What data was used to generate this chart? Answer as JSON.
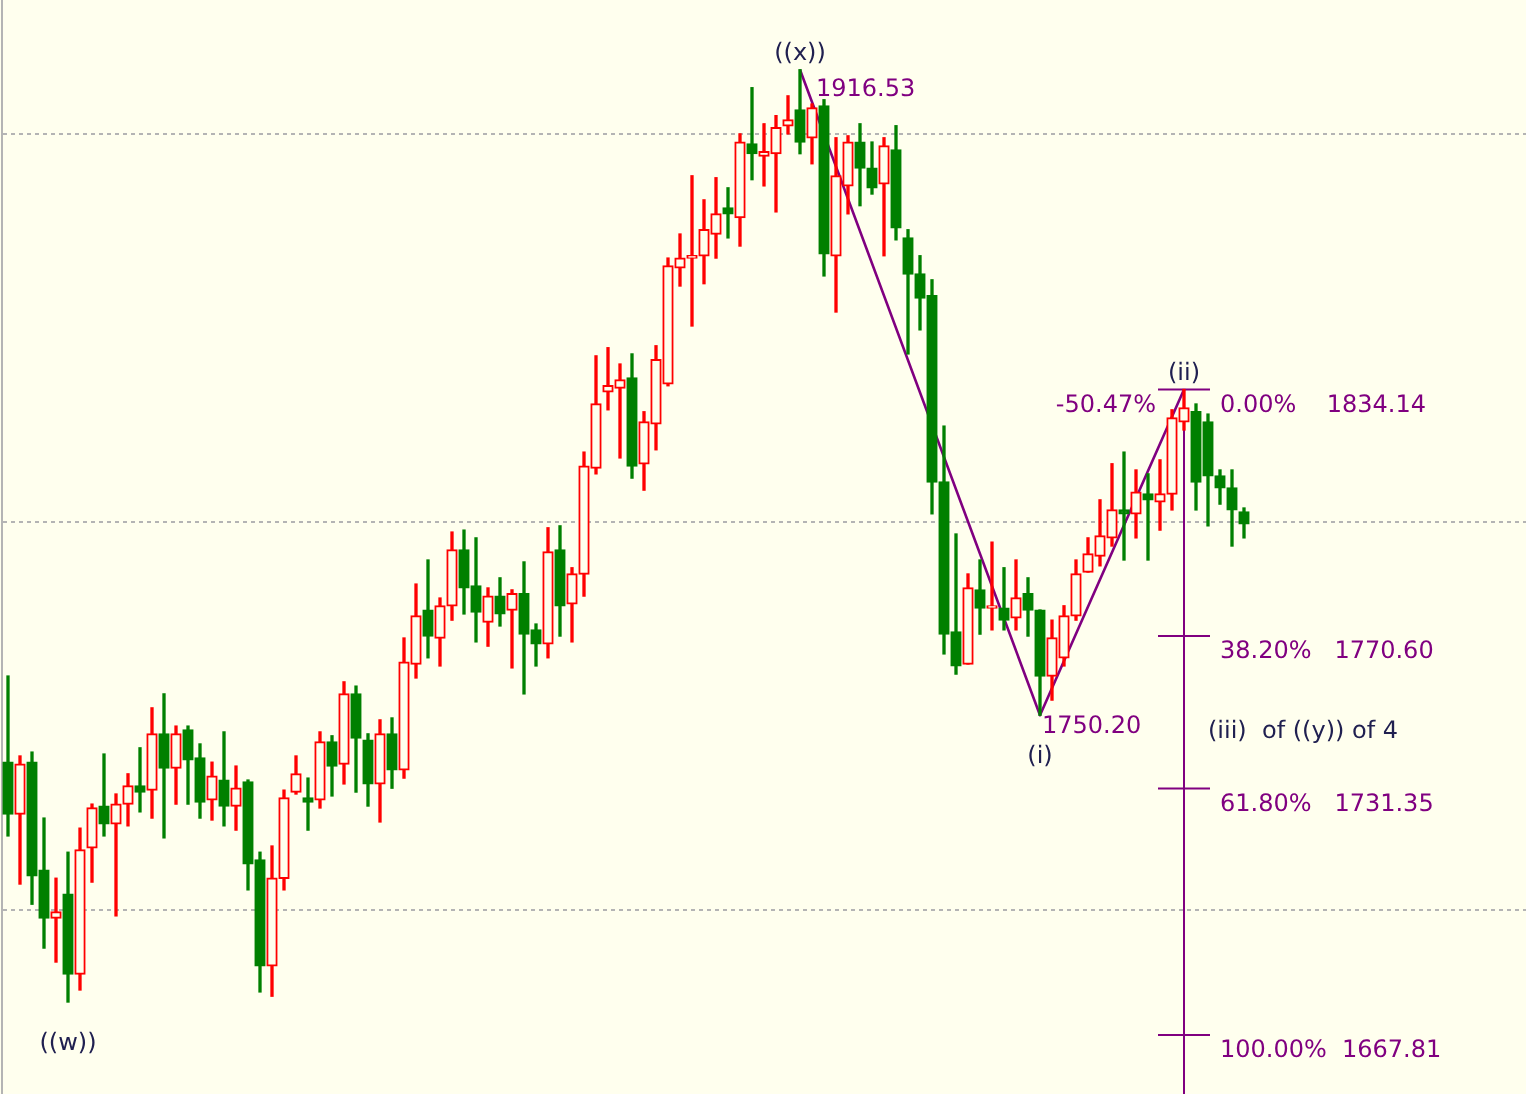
{
  "chart_data": {
    "type": "candlestick",
    "categories": [
      null,
      null,
      null,
      null,
      null,
      null,
      null,
      null,
      null,
      null,
      null,
      null,
      null,
      null,
      null,
      null,
      null,
      null,
      null,
      null,
      null,
      null,
      null,
      null,
      null,
      null,
      null,
      null,
      null,
      null,
      null,
      null,
      null,
      null,
      null,
      null,
      null,
      null,
      null,
      null,
      null,
      null,
      null,
      null,
      null,
      null,
      null,
      null,
      null,
      null,
      null,
      null,
      null,
      null,
      null,
      null,
      null,
      null,
      null,
      null,
      null,
      null,
      null,
      null,
      null,
      null,
      null,
      null,
      null,
      null,
      null,
      null,
      null,
      null,
      null,
      null,
      null,
      null,
      null,
      null,
      null,
      null,
      null,
      null,
      null,
      null,
      null,
      null,
      null,
      null,
      null,
      null,
      null,
      null,
      null,
      null,
      null,
      null,
      null,
      null,
      null,
      null,
      null,
      null,
      null,
      null,
      null,
      null,
      null,
      null,
      null,
      null,
      null,
      null,
      null,
      null,
      null,
      null,
      null,
      null,
      null,
      null,
      null,
      null,
      null,
      null,
      null
    ],
    "ohlc": [
      [
        1738.1,
        1760.3,
        1719.1,
        1724.7
      ],
      [
        1724.7,
        1739.7,
        1706.7,
        1737.6
      ],
      [
        1738.1,
        1740.7,
        1701.5,
        1708.8
      ],
      [
        1710.3,
        1723.7,
        1690.2,
        1697.9
      ],
      [
        1697.9,
        1708.2,
        1686.6,
        1699.5
      ],
      [
        1704.1,
        1714.9,
        1676.3,
        1683.5
      ],
      [
        1683.5,
        1721.1,
        1679.4,
        1715.5
      ],
      [
        1716.0,
        1727.3,
        1707.2,
        1726.3
      ],
      [
        1726.8,
        1740.2,
        1719.1,
        1722.2
      ],
      [
        1722.2,
        1729.9,
        1698.5,
        1727.3
      ],
      [
        1727.3,
        1735.1,
        1721.7,
        1732.0
      ],
      [
        1732.0,
        1741.8,
        1725.3,
        1730.4
      ],
      [
        1730.9,
        1752.1,
        1723.7,
        1745.4
      ],
      [
        1745.4,
        1755.7,
        1718.6,
        1736.6
      ],
      [
        1736.6,
        1747.4,
        1727.3,
        1745.4
      ],
      [
        1746.4,
        1747.4,
        1727.3,
        1738.7
      ],
      [
        1739.2,
        1742.8,
        1723.7,
        1727.8
      ],
      [
        1728.4,
        1738.1,
        1723.2,
        1734.5
      ],
      [
        1733.5,
        1745.9,
        1721.7,
        1726.8
      ],
      [
        1726.8,
        1737.1,
        1720.6,
        1731.4
      ],
      [
        1733.0,
        1733.5,
        1705.2,
        1711.9
      ],
      [
        1712.9,
        1714.9,
        1678.9,
        1685.6
      ],
      [
        1685.6,
        1716.5,
        1677.8,
        1708.2
      ],
      [
        1708.2,
        1730.9,
        1705.2,
        1728.9
      ],
      [
        1730.4,
        1739.7,
        1729.9,
        1735.1
      ],
      [
        1728.9,
        1734.0,
        1720.6,
        1727.8
      ],
      [
        1728.4,
        1745.9,
        1726.3,
        1743.3
      ],
      [
        1743.3,
        1744.9,
        1729.4,
        1737.1
      ],
      [
        1737.6,
        1758.8,
        1732.5,
        1755.7
      ],
      [
        1755.7,
        1757.7,
        1730.4,
        1744.3
      ],
      [
        1743.8,
        1745.4,
        1726.8,
        1732.5
      ],
      [
        1732.5,
        1749.0,
        1722.7,
        1745.4
      ],
      [
        1745.4,
        1749.5,
        1731.4,
        1736.1
      ],
      [
        1736.1,
        1770.1,
        1734.0,
        1763.9
      ],
      [
        1763.4,
        1784.0,
        1759.8,
        1775.8
      ],
      [
        1777.3,
        1790.2,
        1765.0,
        1770.6
      ],
      [
        1770.1,
        1780.4,
        1762.9,
        1778.4
      ],
      [
        1778.4,
        1797.4,
        1774.7,
        1792.8
      ],
      [
        1792.8,
        1797.9,
        1776.3,
        1783.0
      ],
      [
        1783.5,
        1795.9,
        1769.1,
        1776.8
      ],
      [
        1774.2,
        1783.0,
        1768.0,
        1780.9
      ],
      [
        1780.9,
        1785.6,
        1773.2,
        1776.3
      ],
      [
        1777.3,
        1782.5,
        1762.4,
        1781.5
      ],
      [
        1781.5,
        1789.7,
        1755.7,
        1771.1
      ],
      [
        1772.2,
        1773.7,
        1762.9,
        1768.6
      ],
      [
        1768.6,
        1798.5,
        1765.0,
        1792.3
      ],
      [
        1792.8,
        1799.0,
        1770.6,
        1778.4
      ],
      [
        1778.9,
        1788.2,
        1769.1,
        1786.6
      ],
      [
        1786.6,
        1818.0,
        1780.9,
        1814.4
      ],
      [
        1813.9,
        1842.8,
        1812.4,
        1830.4
      ],
      [
        1833.5,
        1844.9,
        1828.9,
        1835.1
      ],
      [
        1834.5,
        1840.7,
        1816.5,
        1836.6
      ],
      [
        1837.1,
        1843.3,
        1811.3,
        1814.4
      ],
      [
        1815.0,
        1828.4,
        1808.2,
        1825.8
      ],
      [
        1825.3,
        1845.4,
        1818.6,
        1841.8
      ],
      [
        1835.6,
        1868.0,
        1835.1,
        1866.0
      ],
      [
        1865.5,
        1874.2,
        1860.8,
        1868.0
      ],
      [
        1868.0,
        1889.2,
        1850.5,
        1868.6
      ],
      [
        1868.6,
        1883.0,
        1861.4,
        1875.3
      ],
      [
        1874.2,
        1888.7,
        1868.0,
        1879.4
      ],
      [
        1880.9,
        1886.1,
        1873.2,
        1879.4
      ],
      [
        1878.4,
        1900.0,
        1871.1,
        1897.9
      ],
      [
        1897.4,
        1911.9,
        1888.2,
        1894.9
      ],
      [
        1894.3,
        1902.6,
        1886.6,
        1895.4
      ],
      [
        1894.9,
        1904.7,
        1879.9,
        1901.6
      ],
      [
        1902.1,
        1909.8,
        1900.0,
        1903.6
      ],
      [
        1906.2,
        1916.53,
        1894.9,
        1897.9
      ],
      [
        1899.0,
        1907.7,
        1892.3,
        1906.7
      ],
      [
        1907.2,
        1908.8,
        1863.4,
        1869.1
      ],
      [
        1868.6,
        1899.0,
        1854.1,
        1889.2
      ],
      [
        1886.6,
        1899.5,
        1879.4,
        1897.9
      ],
      [
        1897.9,
        1902.6,
        1881.5,
        1891.2
      ],
      [
        1891.2,
        1897.9,
        1884.5,
        1886.1
      ],
      [
        1887.1,
        1899.0,
        1868.6,
        1896.9
      ],
      [
        1895.9,
        1902.1,
        1872.7,
        1875.8
      ],
      [
        1873.2,
        1875.3,
        1843.3,
        1863.9
      ],
      [
        1863.9,
        1868.6,
        1849.5,
        1857.7
      ],
      [
        1858.3,
        1862.4,
        1802.1,
        1810.3
      ],
      [
        1810.3,
        1824.7,
        1766.0,
        1771.1
      ],
      [
        1771.7,
        1796.9,
        1760.8,
        1762.9
      ],
      [
        1763.4,
        1786.6,
        1763.4,
        1783.0
      ],
      [
        1782.5,
        1790.2,
        1771.1,
        1777.8
      ],
      [
        1777.8,
        1794.8,
        1772.2,
        1778.4
      ],
      [
        1777.8,
        1788.2,
        1772.2,
        1774.7
      ],
      [
        1775.3,
        1790.2,
        1772.2,
        1780.4
      ],
      [
        1781.5,
        1785.6,
        1770.6,
        1777.3
      ],
      [
        1777.3,
        1777.3,
        1750.2,
        1760.3
      ],
      [
        1760.3,
        1774.7,
        1754.1,
        1770.1
      ],
      [
        1765.0,
        1778.4,
        1762.9,
        1775.8
      ],
      [
        1775.8,
        1790.2,
        1774.7,
        1786.6
      ],
      [
        1787.1,
        1795.9,
        1787.1,
        1791.8
      ],
      [
        1791.2,
        1805.7,
        1788.7,
        1796.4
      ],
      [
        1795.9,
        1815.0,
        1793.8,
        1803.1
      ],
      [
        1803.1,
        1818.0,
        1790.2,
        1802.1
      ],
      [
        1802.1,
        1813.4,
        1795.9,
        1807.7
      ],
      [
        1807.2,
        1812.4,
        1790.2,
        1805.7
      ],
      [
        1805.2,
        1816.0,
        1797.9,
        1807.2
      ],
      [
        1807.2,
        1828.9,
        1803.1,
        1826.8
      ],
      [
        1825.8,
        1834.14,
        1823.7,
        1829.4
      ],
      [
        1828.4,
        1830.4,
        1803.1,
        1810.3
      ],
      [
        1825.8,
        1827.8,
        1799.0,
        1811.9
      ],
      [
        1811.9,
        1813.4,
        1804.6,
        1808.8
      ],
      [
        1808.8,
        1813.4,
        1793.8,
        1803.1
      ],
      [
        1802.6,
        1803.6,
        1795.9,
        1799.5
      ],
      null,
      null,
      null,
      null,
      null,
      null,
      null,
      null,
      null,
      null,
      null,
      null,
      null,
      null,
      null,
      null,
      null,
      null,
      null,
      null,
      null,
      null,
      null
    ],
    "colors": [
      "#008000",
      "#ff0000",
      "#008000",
      "#008000",
      "#ff0000",
      "#008000",
      "#ff0000",
      "#ff0000",
      "#008000",
      "#ff0000",
      "#ff0000",
      "#008000",
      "#ff0000",
      "#008000",
      "#ff0000",
      "#008000",
      "#008000",
      "#ff0000",
      "#008000",
      "#ff0000",
      "#008000",
      "#008000",
      "#ff0000",
      "#ff0000",
      "#ff0000",
      "#008000",
      "#ff0000",
      "#008000",
      "#ff0000",
      "#008000",
      "#008000",
      "#ff0000",
      "#008000",
      "#ff0000",
      "#ff0000",
      "#008000",
      "#ff0000",
      "#ff0000",
      "#008000",
      "#008000",
      "#ff0000",
      "#008000",
      "#ff0000",
      "#008000",
      "#008000",
      "#ff0000",
      "#008000",
      "#ff0000",
      "#ff0000",
      "#ff0000",
      "#ff0000",
      "#ff0000",
      "#008000",
      "#ff0000",
      "#ff0000",
      "#ff0000",
      "#ff0000",
      "#ff0000",
      "#ff0000",
      "#ff0000",
      "#008000",
      "#ff0000",
      "#008000",
      "#ff0000",
      "#ff0000",
      "#ff0000",
      "#008000",
      "#ff0000",
      "#008000",
      "#ff0000",
      "#ff0000",
      "#008000",
      "#008000",
      "#ff0000",
      "#008000",
      "#008000",
      "#008000",
      "#008000",
      "#008000",
      "#008000",
      "#ff0000",
      "#008000",
      "#ff0000",
      "#008000",
      "#ff0000",
      "#008000",
      "#008000",
      "#ff0000",
      "#ff0000",
      "#ff0000",
      "#ff0000",
      "#ff0000",
      "#ff0000",
      "#008000",
      "#ff0000",
      "#008000",
      "#ff0000",
      "#ff0000",
      "#ff0000",
      "#008000",
      "#008000",
      "#008000",
      "#008000",
      "#008000",
      null,
      null,
      null,
      null,
      null,
      null,
      null,
      null,
      null,
      null,
      null,
      null,
      null,
      null,
      null,
      null,
      null,
      null,
      null,
      null,
      null,
      null,
      null
    ],
    "series": [
      {
        "type": "line",
        "color": "#800080",
        "values": [
          null,
          null,
          null,
          null,
          null,
          null,
          null,
          null,
          null,
          null,
          null,
          null,
          null,
          null,
          null,
          null,
          null,
          null,
          null,
          null,
          null,
          null,
          null,
          null,
          null,
          null,
          null,
          null,
          null,
          null,
          null,
          null,
          null,
          null,
          null,
          null,
          null,
          null,
          null,
          null,
          null,
          null,
          null,
          null,
          null,
          null,
          null,
          null,
          null,
          null,
          null,
          null,
          null,
          null,
          null,
          null,
          null,
          null,
          null,
          null,
          null,
          null,
          null,
          null,
          null,
          null,
          1916.53,
          null,
          null,
          null,
          null,
          null,
          null,
          null,
          null,
          null,
          null,
          null,
          null,
          null,
          null,
          null,
          null,
          null,
          null,
          null,
          1750.2,
          null,
          null,
          null,
          null,
          null,
          null,
          null,
          null,
          null,
          null,
          null,
          1834.14,
          null,
          null,
          null,
          null,
          null,
          null,
          null,
          null,
          null,
          null,
          null,
          null,
          null,
          null,
          null,
          null,
          null,
          null,
          null,
          null,
          null,
          null,
          null,
          null,
          null,
          null,
          null,
          null
        ]
      }
    ],
    "ylim": [
      1652.6,
      1934.5
    ],
    "yticks": [
      {
        "value": 1700,
        "label": null
      },
      {
        "value": 1800,
        "label": null
      },
      {
        "value": 1900,
        "label": null
      }
    ],
    "grid": "y",
    "tick_labels": false,
    "ref_lines": [
      {
        "axis": "y",
        "value": 1834.14,
        "label": "0.00%    1834.14",
        "color": "#800080"
      },
      {
        "axis": "y",
        "value": 1770.6,
        "label": "38.20%   1770.60",
        "color": "#800080"
      },
      {
        "axis": "y",
        "value": 1731.35,
        "label": "61.80%   1731.35",
        "color": "#800080"
      },
      {
        "axis": "y",
        "value": 1667.81,
        "label": "100.00%  1667.81",
        "color": "#800080"
      }
    ],
    "annotations": [
      {
        "text": "((x))",
        "y": 1916.53
      },
      {
        "text": "(i)",
        "y": 1750.2
      },
      {
        "text": "(ii)",
        "y": 1834.14
      },
      {
        "text": "((w))",
        "y": 1676.3
      },
      "1916.53",
      "1750.20",
      "-50.47%",
      "(iii)  of ((y)) of 4"
    ]
  }
}
